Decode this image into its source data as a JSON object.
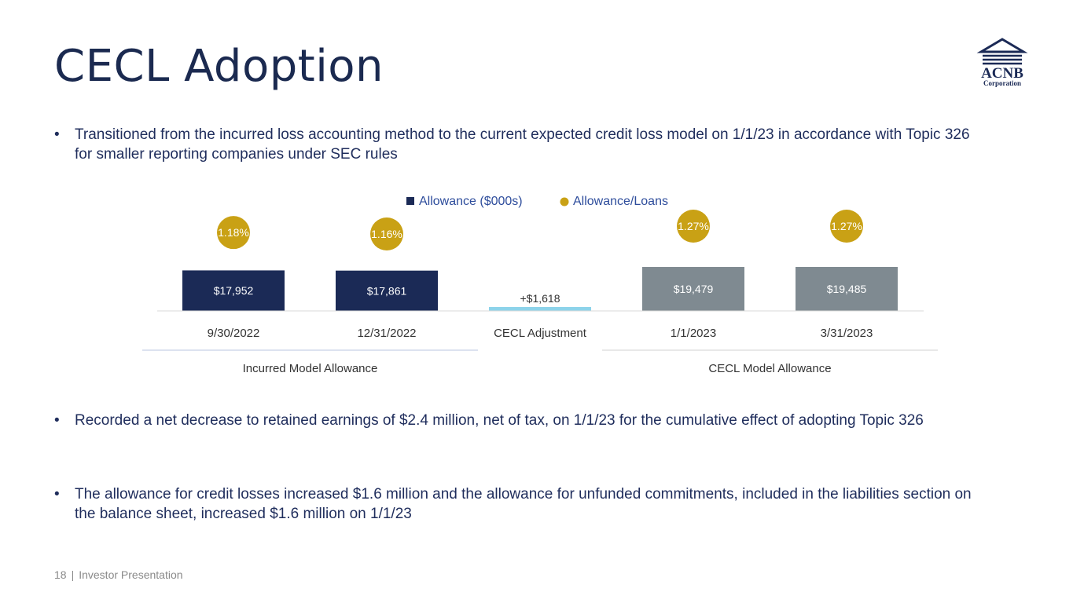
{
  "slide": {
    "title": "CECL Adoption",
    "logo_text": "ACNB",
    "logo_subtext": "Corporation"
  },
  "bullets": [
    "Transitioned from the incurred loss accounting method to the current expected credit loss model on 1/1/23 in accordance with Topic 326 for smaller reporting companies under SEC rules",
    "Recorded a net decrease to retained earnings of $2.4 million, net of tax, on 1/1/23 for the cumulative effect of adopting Topic 326",
    "The allowance for credit losses increased $1.6 million and the allowance for unfunded commitments, included in the liabilities section on the balance sheet, increased $1.6 million on 1/1/23"
  ],
  "bullet_marker": "•",
  "footer": {
    "page_number": "18",
    "separator": "|",
    "label": "Investor Presentation"
  },
  "chart_data": {
    "type": "bar",
    "categories": [
      "9/30/2022",
      "12/31/2022",
      "CECL Adjustment",
      "1/1/2023",
      "3/31/2023"
    ],
    "series": [
      {
        "name": "Allowance ($000s)",
        "values": [
          17952,
          17861,
          1618,
          19479,
          19485
        ],
        "labels": [
          "$17,952",
          "$17,861",
          "+$1,618",
          "$19,479",
          "$19,485"
        ],
        "colors": [
          "#1b2a56",
          "#1b2a56",
          "#8dd3ea",
          "#7f8a91",
          "#7f8a91"
        ]
      },
      {
        "name": "Allowance/Loans",
        "type": "scatter",
        "values": [
          1.18,
          1.16,
          null,
          1.27,
          1.27
        ],
        "labels": [
          "1.18%",
          "1.16%",
          "",
          "1.27%",
          "1.27%"
        ],
        "color": "#c9a115"
      }
    ],
    "groups": [
      {
        "label": "Incurred Model Allowance",
        "categories": [
          0,
          1
        ]
      },
      {
        "label": "CECL Model Allowance",
        "categories": [
          3,
          4
        ]
      }
    ],
    "legend": {
      "position": "top",
      "color": "#2e4d9c"
    },
    "legend_marker_color": "#1b2a56",
    "grid": false
  }
}
